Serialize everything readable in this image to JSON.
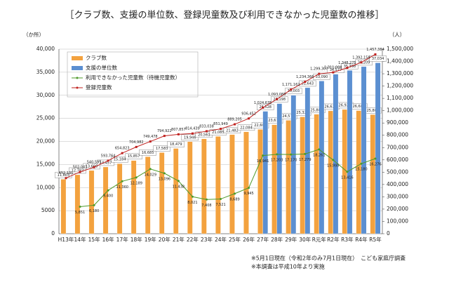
{
  "chart_data": {
    "type": "combo",
    "title": "［クラブ数、支援の単位数、登録児童数及び利用できなかった児童数の推移］",
    "y_label": "（か所）",
    "y2_label": "（人）",
    "categories": [
      "H13年",
      "14年",
      "15年",
      "16年",
      "17年",
      "18年",
      "19年",
      "20年",
      "21年",
      "22年",
      "23年",
      "24年",
      "25年",
      "26年",
      "27年",
      "28年",
      "29年",
      "30年",
      "R元年",
      "R2年",
      "R3年",
      "R4年",
      "R5年"
    ],
    "ylim": [
      0,
      40000
    ],
    "yticks": [
      0,
      5000,
      {
        "value": 10000,
        "label": "10,000"
      },
      {
        "value": 15000,
        "label": "15,000"
      },
      {
        "value": 20000,
        "label": "20,000"
      },
      {
        "value": 25000,
        "label": "25,000"
      },
      {
        "value": 30000,
        "label": "30,000"
      },
      {
        "value": 35000,
        "label": "35,000"
      },
      {
        "value": 40000,
        "label": "40,000"
      }
    ],
    "y2lim": [
      0,
      1500000
    ],
    "y2ticks": [
      0,
      {
        "value": 100000,
        "label": "100,000"
      },
      {
        "value": 200000,
        "label": "200,000"
      },
      {
        "value": 300000,
        "label": "300,000"
      },
      {
        "value": 400000,
        "label": "400,000"
      },
      {
        "value": 500000,
        "label": "500,000"
      },
      {
        "value": 600000,
        "label": "600,000"
      },
      {
        "value": 700000,
        "label": "700,000"
      },
      {
        "value": 800000,
        "label": "800,000"
      },
      {
        "value": 900000,
        "label": "900,000"
      },
      {
        "value": 1000000,
        "label": "1,000,000"
      },
      {
        "value": 1100000,
        "label": "1,100,000"
      },
      {
        "value": 1200000,
        "label": "1,200,000"
      },
      {
        "value": 1300000,
        "label": "1,300,000"
      },
      {
        "value": 1400000,
        "label": "1,400,000"
      },
      {
        "value": 1500000,
        "label": "1,500,000"
      }
    ],
    "grid": true,
    "series": [
      {
        "name": "クラブ数",
        "type": "bar",
        "color": "#f3a23f",
        "values": [
          11803,
          12782,
          13698,
          14457,
          15184,
          15857,
          16685,
          17583,
          18479,
          19946,
          20561,
          21085,
          21482,
          22084,
          22608,
          23619,
          24573,
          25328,
          25881,
          26625,
          26925,
          26683,
          25807
        ],
        "value_labels": [
          "11,803",
          "12,782",
          "13,698",
          "14,457",
          "15,184",
          "15,857",
          "16,685",
          "17,583",
          "18,479",
          "19,946",
          "20,561",
          "21,085",
          "21,482",
          "22,084",
          "22,608",
          "23,619",
          "24,573",
          "25,328",
          "25,881",
          "26,625",
          "26,925",
          "26,683",
          "25,807"
        ]
      },
      {
        "name": "支援の単位数",
        "type": "bar",
        "color": "#5b8fd1",
        "values": [
          null,
          null,
          null,
          null,
          null,
          null,
          null,
          null,
          null,
          null,
          null,
          null,
          null,
          null,
          26528,
          28198,
          30003,
          31643,
          33090,
          34577,
          35398,
          36209,
          37034
        ],
        "value_labels": [
          null,
          null,
          null,
          null,
          null,
          null,
          null,
          null,
          null,
          null,
          null,
          null,
          null,
          null,
          "26,528",
          "28,198",
          "30,003",
          "31,643",
          "33,090",
          "34,577",
          "35,398",
          "36,209",
          "37,034"
        ]
      },
      {
        "name": "利用できなかった児童数（待機児童数）",
        "type": "line",
        "color": "#4e9a2a",
        "values": [
          null,
          5851,
          6180,
          9400,
          11360,
          12189,
          14029,
          13096,
          11438,
          8021,
          7408,
          7521,
          8689,
          9945,
          16941,
          17203,
          17170,
          17279,
          18261,
          15995,
          13416,
          15180,
          16276
        ],
        "value_labels": [
          null,
          "5,851",
          "6,180",
          "9,400",
          "11,360",
          "12,189",
          "14,029",
          "13,096",
          "11,438",
          "8,021",
          "7,408",
          "7,521",
          "8,689",
          "9,945",
          "16,941",
          "17,203",
          "17,170",
          "17,279",
          "18,261",
          "15,995",
          "13,416",
          "15,180",
          "16,276"
        ]
      },
      {
        "name": "登録児童数",
        "type": "line",
        "axis": "y2",
        "color": "#c0211f",
        "values": [
          452135,
          502041,
          540595,
          593764,
          654823,
          704982,
          749478,
          794922,
          807857,
          814439,
          833038,
          851949,
          889205,
          936452,
          1024635,
          1093085,
          1171162,
          1234366,
          1299307,
          1311008,
          1348275,
          1392158,
          1457384
        ],
        "value_labels": [
          "452,135",
          "502,041",
          "540,595",
          "593,764",
          "654,823",
          "704,982",
          "749,478",
          "794,922",
          "807,857",
          "814,439",
          "833,038",
          "851,949",
          "889,205",
          "936,452",
          "1,024,635",
          "1,093,085",
          "1,171,162",
          "1,234,366",
          "1,299,307",
          "1,311,008",
          "1,348,275",
          "1,392,158",
          "1,457,384"
        ]
      }
    ],
    "notes": [
      "※5月1日現在（令和2年のみ7月1日現在）　こども家庭庁調査",
      "※本調査は平成10年より実施"
    ]
  }
}
